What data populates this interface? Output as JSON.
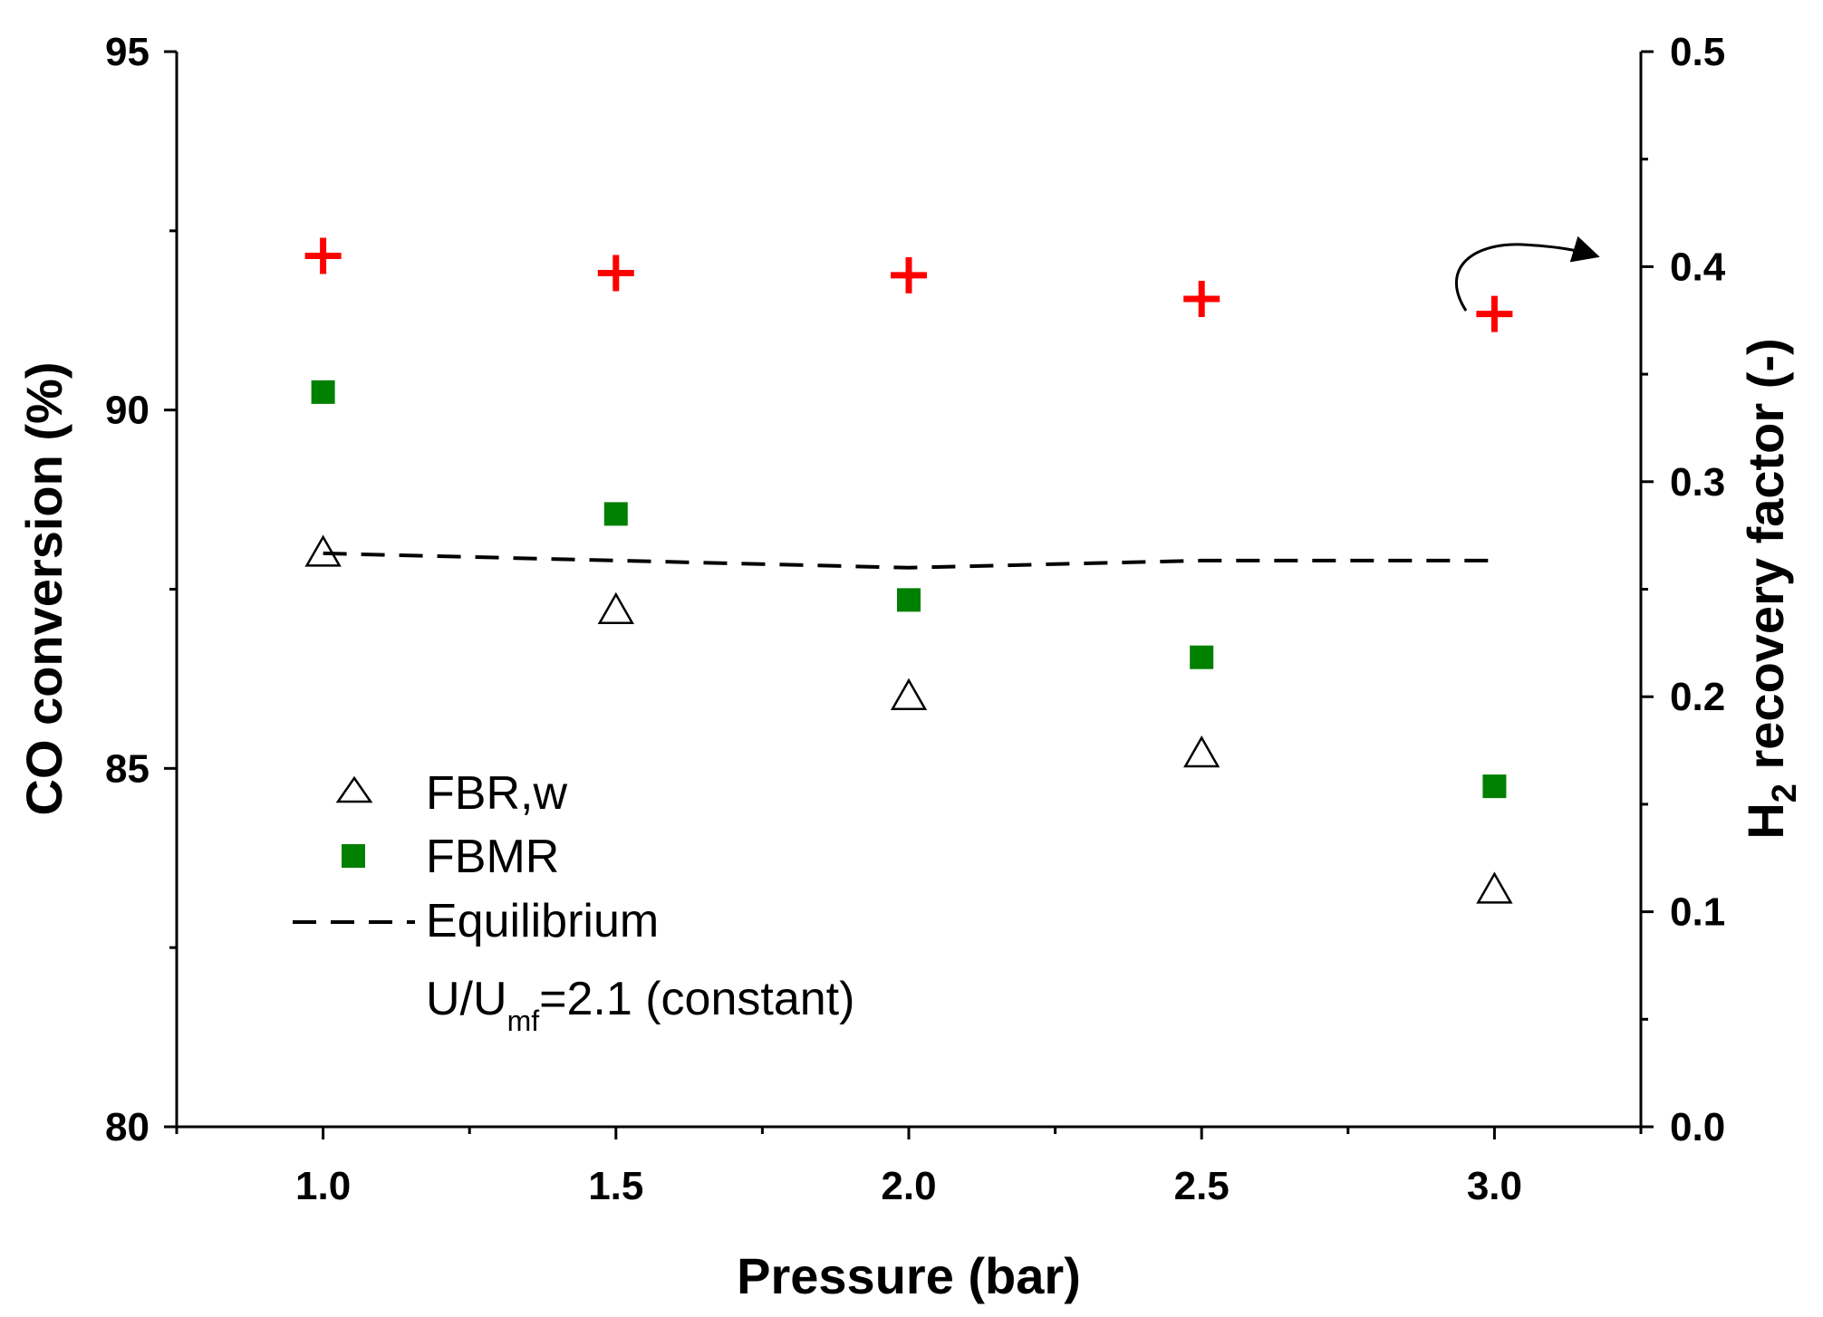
{
  "chart_data": {
    "type": "scatter",
    "x_label": "Pressure (bar)",
    "y_left_label": "CO conversion (%)",
    "y_right_label_main": "H",
    "y_right_label_sub": "2",
    "y_right_label_rest": " recovery factor (-)",
    "x_ticks": [
      "1.0",
      "1.5",
      "2.0",
      "2.5",
      "3.0"
    ],
    "x_tick_values": [
      1.0,
      1.5,
      2.0,
      2.5,
      3.0
    ],
    "x_range": [
      0.75,
      3.25
    ],
    "y_left_ticks": [
      "80",
      "85",
      "90",
      "95"
    ],
    "y_left_tick_values": [
      80,
      85,
      90,
      95
    ],
    "y_left_range": [
      80,
      95
    ],
    "y_right_ticks": [
      "0.0",
      "0.1",
      "0.2",
      "0.3",
      "0.4",
      "0.5"
    ],
    "y_right_tick_values": [
      0.0,
      0.1,
      0.2,
      0.3,
      0.4,
      0.5
    ],
    "y_right_range": [
      0.0,
      0.5
    ],
    "series": [
      {
        "name": "FBR,w",
        "marker": "open-triangle",
        "color": "#000000",
        "axis": "left",
        "x": [
          1.0,
          1.5,
          2.0,
          2.5,
          3.0
        ],
        "y": [
          88.0,
          87.2,
          86.0,
          85.2,
          83.3
        ]
      },
      {
        "name": "FBMR",
        "marker": "filled-square",
        "color": "#008000",
        "axis": "left",
        "x": [
          1.0,
          1.5,
          2.0,
          2.5,
          3.0
        ],
        "y": [
          90.25,
          88.55,
          87.35,
          86.55,
          84.75
        ]
      },
      {
        "name": "Equilibrium",
        "marker": "dashed-line",
        "color": "#000000",
        "axis": "left",
        "x": [
          1.0,
          1.5,
          2.0,
          2.5,
          3.0
        ],
        "y": [
          88.0,
          87.9,
          87.8,
          87.9,
          87.9
        ]
      },
      {
        "name": "H2 recovery factor",
        "marker": "plus",
        "color": "#ff0000",
        "axis": "right",
        "x": [
          1.0,
          1.5,
          2.0,
          2.5,
          3.0
        ],
        "y": [
          0.405,
          0.397,
          0.396,
          0.385,
          0.378
        ]
      }
    ],
    "legend": {
      "placement": "bottom-left",
      "entries": [
        "FBR,w",
        "FBMR",
        "Equilibrium"
      ],
      "note_main": "U/U",
      "note_sub": "mf",
      "note_rest": "=2.1 (constant)"
    },
    "annotation": "curved arrow pointing to right axis"
  }
}
